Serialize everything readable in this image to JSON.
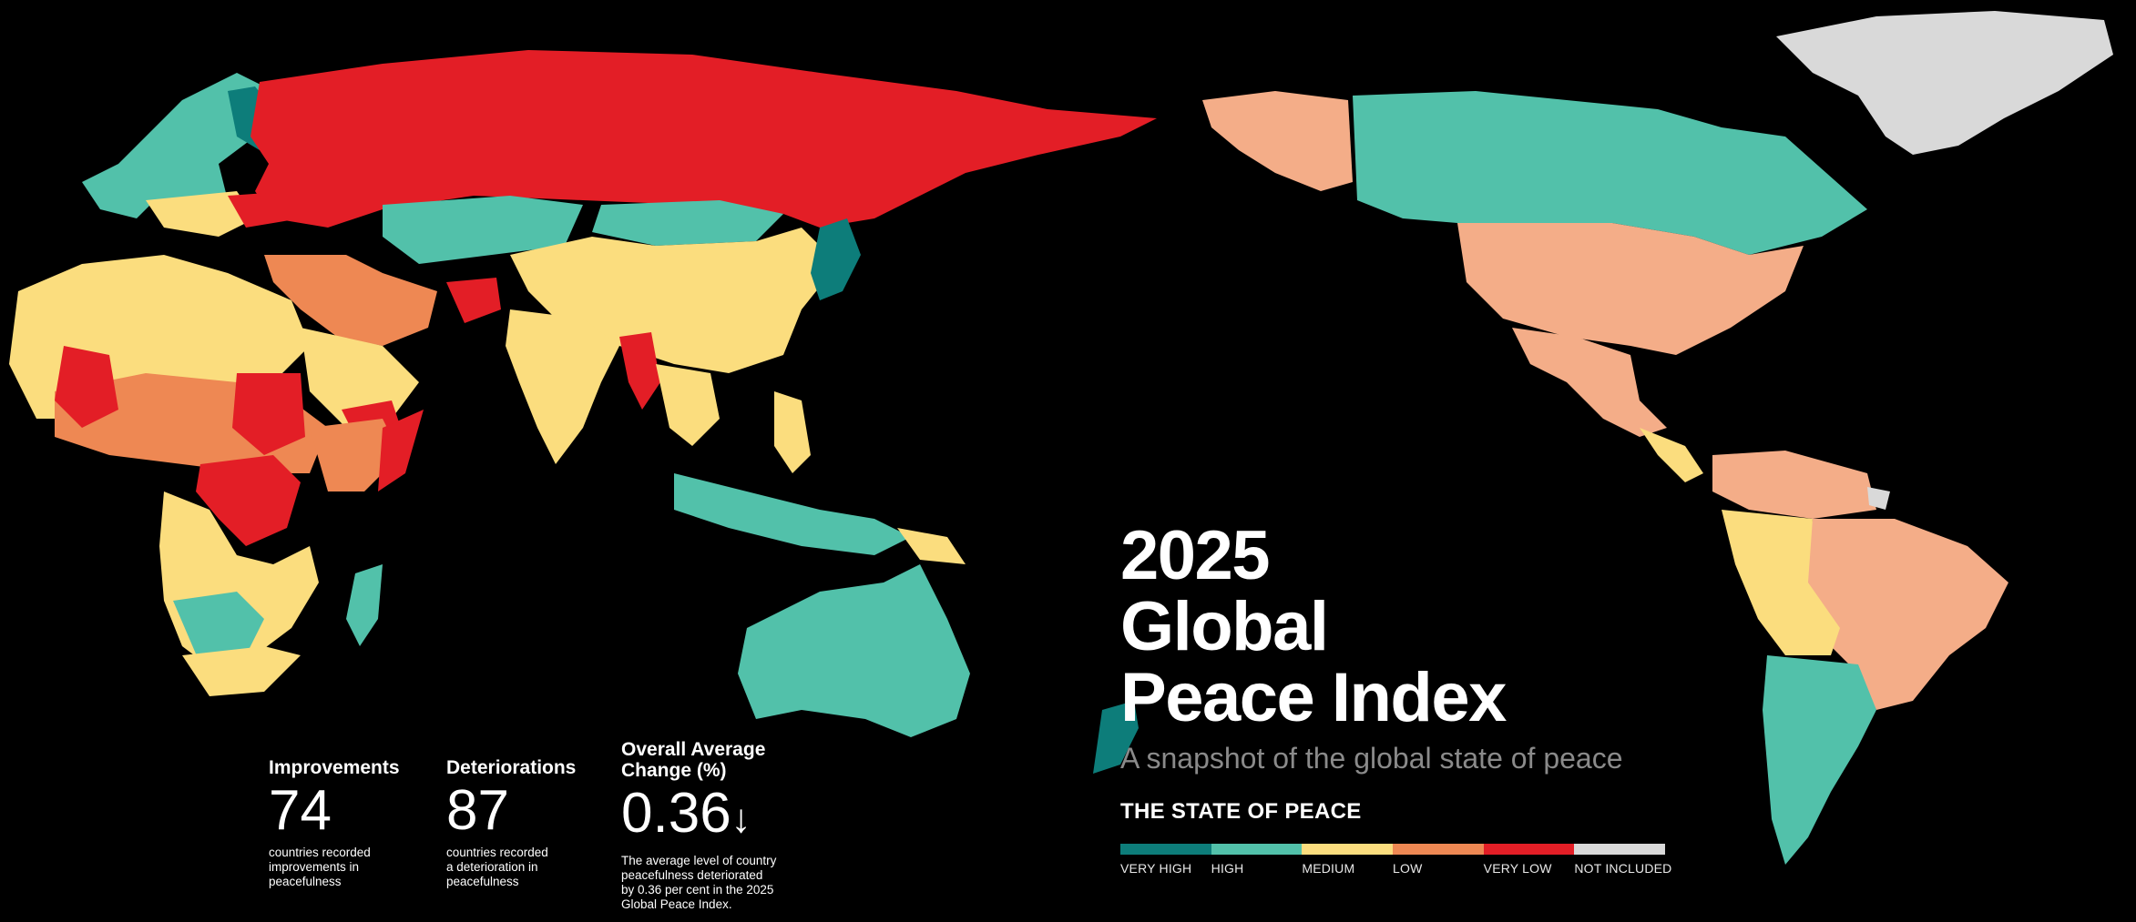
{
  "title": {
    "line1": "2025",
    "line2": "Global",
    "line3": "Peace Index"
  },
  "subtitle": "A snapshot of the global state of peace",
  "legend": {
    "title": "THE STATE OF PEACE",
    "items": [
      {
        "label": "VERY HIGH",
        "color": "#0d7d7a"
      },
      {
        "label": "HIGH",
        "color": "#52c1aa"
      },
      {
        "label": "MEDIUM",
        "color": "#fbdd7e"
      },
      {
        "label": "LOW",
        "color": "#ee8853"
      },
      {
        "label": "VERY LOW",
        "color": "#e31e26"
      },
      {
        "label": "NOT INCLUDED",
        "color": "#d9d9d9"
      }
    ]
  },
  "stats": {
    "improvements": {
      "label": "Improvements",
      "value": "74",
      "desc_lines": [
        "countries recorded",
        "improvements in",
        "peacefulness"
      ]
    },
    "deteriorations": {
      "label": "Deteriorations",
      "value": "87",
      "desc_lines": [
        "countries recorded",
        "a deterioration in",
        "peacefulness"
      ]
    },
    "average": {
      "label_lines": [
        "Overall Average",
        "Change (%)"
      ],
      "value": "0.36",
      "arrow": "↓",
      "desc_lines": [
        "The average level of country",
        "peacefulness deteriorated",
        "by 0.36 per cent in the 2025",
        "Global Peace Index."
      ]
    }
  }
}
